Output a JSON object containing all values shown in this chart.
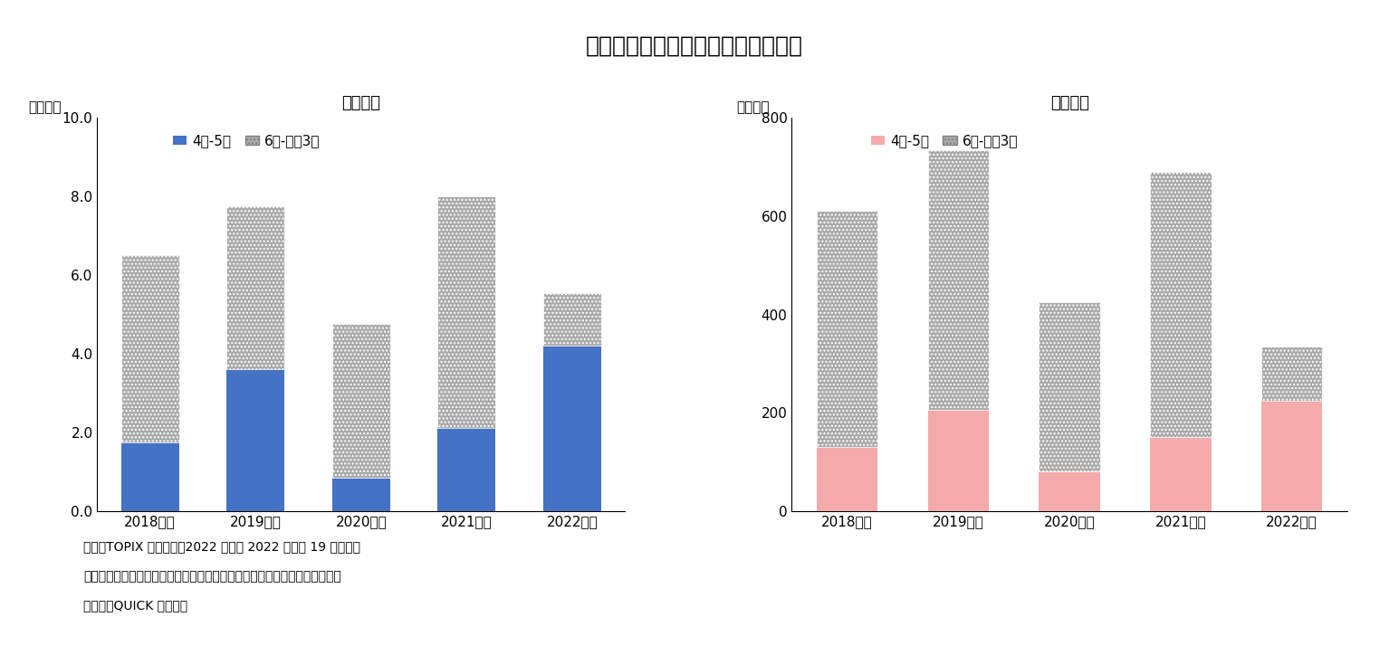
{
  "title": "図表１　自社株買い設定額等の推移",
  "title_fontsize": 18,
  "categories": [
    "2018年度",
    "2019年度",
    "2020年度",
    "2021年度",
    "2022年度"
  ],
  "left_title": "設定金額",
  "left_ylabel": "（兆円）",
  "left_ylim": [
    0,
    10.0
  ],
  "left_yticks": [
    0.0,
    2.0,
    4.0,
    6.0,
    8.0,
    10.0
  ],
  "left_bar1": [
    1.75,
    3.6,
    0.85,
    2.1,
    4.2
  ],
  "left_bar2": [
    4.75,
    4.15,
    3.9,
    5.9,
    1.35
  ],
  "left_color1": "#4472C4",
  "left_color2": "#AAAAAA",
  "left_legend1": "4月-5月",
  "left_legend2": "6月-翌年3月",
  "right_title": "設定件数",
  "right_ylabel": "（件数）",
  "right_ylim": [
    0,
    800
  ],
  "right_yticks": [
    0,
    200,
    400,
    600,
    800
  ],
  "right_bar1": [
    130,
    205,
    80,
    150,
    225
  ],
  "right_bar2": [
    480,
    530,
    345,
    540,
    110
  ],
  "right_color1": "#F4AAAA",
  "right_color2": "#AAAAAA",
  "right_legend1": "4月-5月",
  "right_legend2": "6月-翌年3月",
  "note_line1": "（注）TOPIX 構成銘柄。2022 年度は 2022 年８月 19 日時点。",
  "note_line2": "　　設定件数は年度中に設定された自社株買いの件数のため重複企業あり。",
  "note_line3": "（資料）QUICK から作成",
  "bg_color": "#FFFFFF",
  "bar_width": 0.55,
  "hatch_pattern": "....",
  "font_size_axis": 11,
  "font_size_legend": 11,
  "font_size_title": 13,
  "font_size_ylabel": 11,
  "font_size_note": 10
}
